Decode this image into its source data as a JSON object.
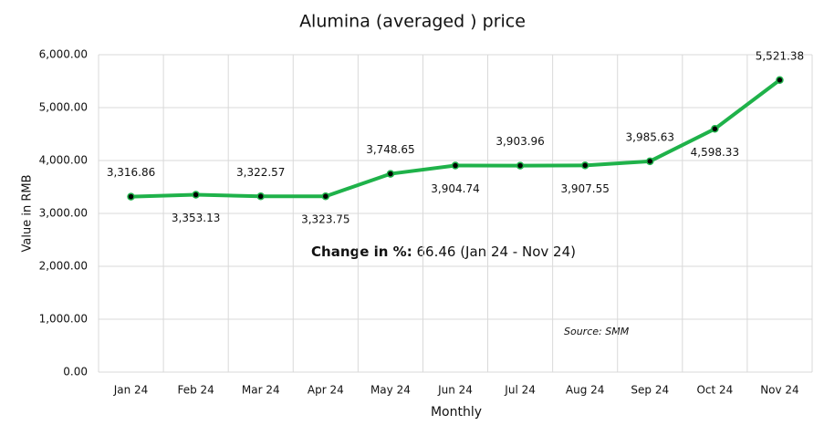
{
  "chart_data": {
    "type": "line",
    "title": "Alumina (averaged ) price",
    "x_label": "Monthly",
    "y_label": "Value in RMB",
    "categories": [
      "Jan 24",
      "Feb 24",
      "Mar 24",
      "Apr 24",
      "May 24",
      "Jun 24",
      "Jul 24",
      "Aug 24",
      "Sep 24",
      "Oct 24",
      "Nov 24"
    ],
    "values": [
      3316.86,
      3353.13,
      3322.57,
      3323.75,
      3748.65,
      3904.74,
      3903.96,
      3907.55,
      3985.63,
      4598.33,
      5521.38
    ],
    "value_labels": [
      "3,316.86",
      "3,353.13",
      "3,322.57",
      "3,323.75",
      "3,748.65",
      "3,904.74",
      "3,903.96",
      "3,907.55",
      "3,985.63",
      "4,598.33",
      "5,521.38"
    ],
    "color": "#1fb24a",
    "ylim": [
      0,
      6000
    ],
    "yticks": [
      {
        "value": 0,
        "label": "0.00"
      },
      {
        "value": 1000,
        "label": "1,000.00"
      },
      {
        "value": 2000,
        "label": "2,000.00"
      },
      {
        "value": 3000,
        "label": "3,000.00"
      },
      {
        "value": 4000,
        "label": "4,000.00"
      },
      {
        "value": 5000,
        "label": "5,000.00"
      },
      {
        "value": 6000,
        "label": "6,000.00"
      }
    ],
    "grid": true,
    "annotation_label": "Change in %:",
    "annotation_text": "66.46 (Jan 24 - Nov 24)",
    "source": "Source: SMM"
  }
}
